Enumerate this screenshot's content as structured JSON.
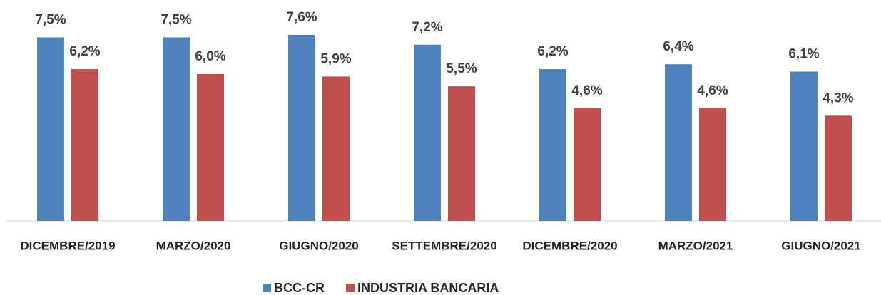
{
  "chart_data": {
    "type": "bar",
    "categories": [
      "DICEMBRE/2019",
      "MARZO/2020",
      "GIUGNO/2020",
      "SETTEMBRE/2020",
      "DICEMBRE/2020",
      "MARZO/2021",
      "GIUGNO/2021"
    ],
    "series": [
      {
        "name": "BCC-CR",
        "color": "#4f81bd",
        "values": [
          7.5,
          7.5,
          7.6,
          7.2,
          6.2,
          6.4,
          6.1
        ],
        "value_labels": [
          "7,5%",
          "7,5%",
          "7,6%",
          "7,2%",
          "6,2%",
          "6,4%",
          "6,1%"
        ]
      },
      {
        "name": "INDUSTRIA BANCARIA",
        "color": "#c0504d",
        "values": [
          6.2,
          6.0,
          5.9,
          5.5,
          4.6,
          4.6,
          4.3
        ],
        "value_labels": [
          "6,2%",
          "6,0%",
          "5,9%",
          "5,5%",
          "4,6%",
          "4,6%",
          "4,3%"
        ]
      }
    ],
    "legend": "bottom"
  }
}
